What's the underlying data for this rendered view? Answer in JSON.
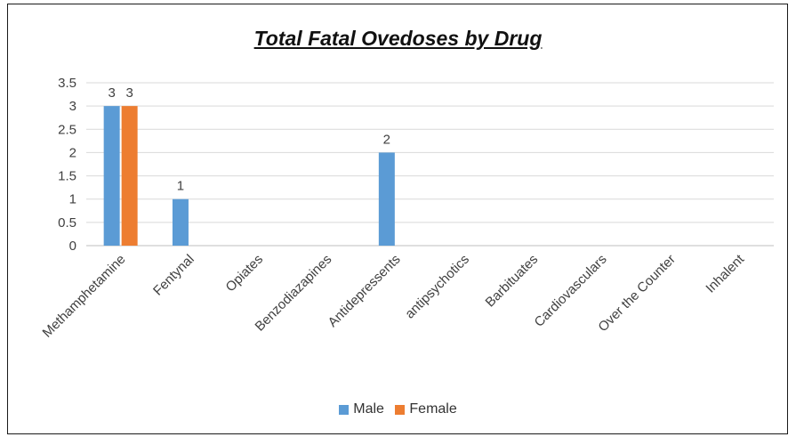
{
  "chart_data": {
    "type": "bar",
    "title": "Total Fatal Ovedoses by Drug",
    "categories": [
      "Methamphetamine",
      "Fentynal",
      "Opiates",
      "Benzodiazapines",
      "Antidepressents",
      "antipsychotics",
      "Barbituates",
      "Cardiovasculars",
      "Over the Counter",
      "Inhalent"
    ],
    "series": [
      {
        "name": "Male",
        "values": [
          3,
          1,
          0,
          0,
          2,
          0,
          0,
          0,
          0,
          0
        ],
        "color": "#5b9bd5"
      },
      {
        "name": "Female",
        "values": [
          3,
          0,
          0,
          0,
          0,
          0,
          0,
          0,
          0,
          0
        ],
        "color": "#ed7d31"
      }
    ],
    "data_labels": [
      {
        "series": "Male",
        "category": "Methamphetamine",
        "value": 3
      },
      {
        "series": "Female",
        "category": "Methamphetamine",
        "value": 3
      },
      {
        "series": "Male",
        "category": "Fentynal",
        "value": 1
      },
      {
        "series": "Male",
        "category": "Antidepressents",
        "value": 2
      }
    ],
    "ylim": [
      0,
      3.5
    ],
    "yticks": [
      "0",
      "0.5",
      "1",
      "1.5",
      "2",
      "2.5",
      "3",
      "3.5"
    ],
    "grid": true,
    "legend_position": "bottom"
  }
}
